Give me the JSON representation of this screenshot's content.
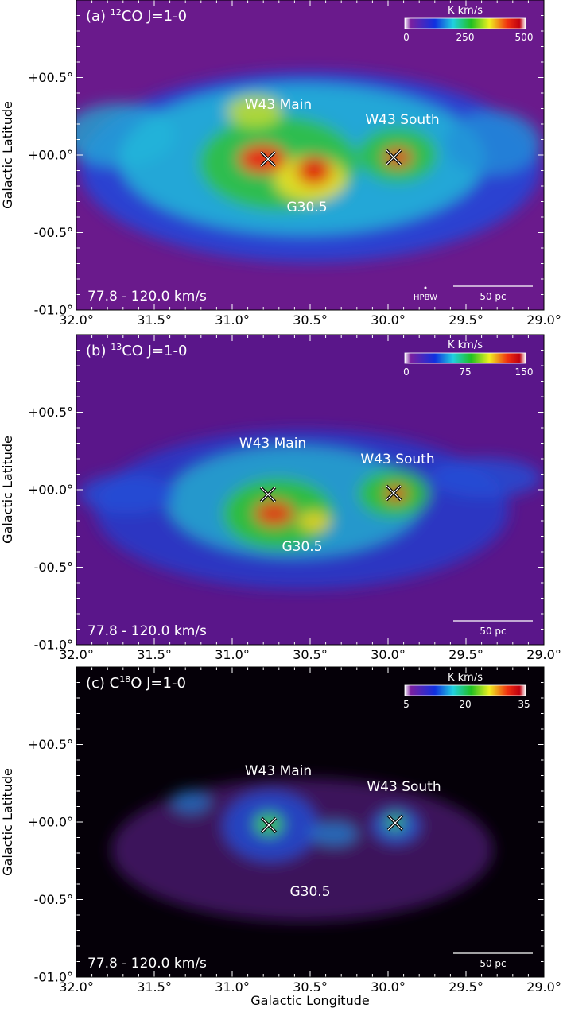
{
  "panels": [
    {
      "label": {
        "prefix": "(a) ",
        "sup": "12",
        "suffix": "CO J=1-0"
      },
      "colorbar": {
        "unit": "K km/s",
        "ticks": [
          "0",
          "250",
          "500"
        ]
      },
      "sources": [
        "W43 Main",
        "W43 South",
        "G30.5"
      ],
      "velocity": "77.8 - 120.0 km/s",
      "scale": "50 pc",
      "beam": "HPBW"
    },
    {
      "label": {
        "prefix": "(b) ",
        "sup": "13",
        "suffix": "CO J=1-0"
      },
      "colorbar": {
        "unit": "K km/s",
        "ticks": [
          "0",
          "75",
          "150"
        ]
      },
      "sources": [
        "W43 Main",
        "W43 South",
        "G30.5"
      ],
      "velocity": "77.8 - 120.0 km/s",
      "scale": "50 pc"
    },
    {
      "label": {
        "prefix": "(c) C",
        "sup": "18",
        "suffix": "O J=1-0"
      },
      "colorbar": {
        "unit": "K km/s",
        "ticks": [
          "5",
          "20",
          "35"
        ]
      },
      "sources": [
        "W43 Main",
        "W43 South",
        "G30.5"
      ],
      "velocity": "77.8 - 120.0 km/s",
      "scale": "50 pc"
    }
  ],
  "x_axis": {
    "title": "Galactic Longitude",
    "ticks": [
      "32.0°",
      "31.5°",
      "31.0°",
      "30.5°",
      "30.0°",
      "29.5°",
      "29.0°"
    ]
  },
  "y_axis": {
    "title": "Galactic Latitude",
    "ticks": [
      "+00.5°",
      "+00.0°",
      "-00.5°",
      "-01.0°"
    ]
  }
}
